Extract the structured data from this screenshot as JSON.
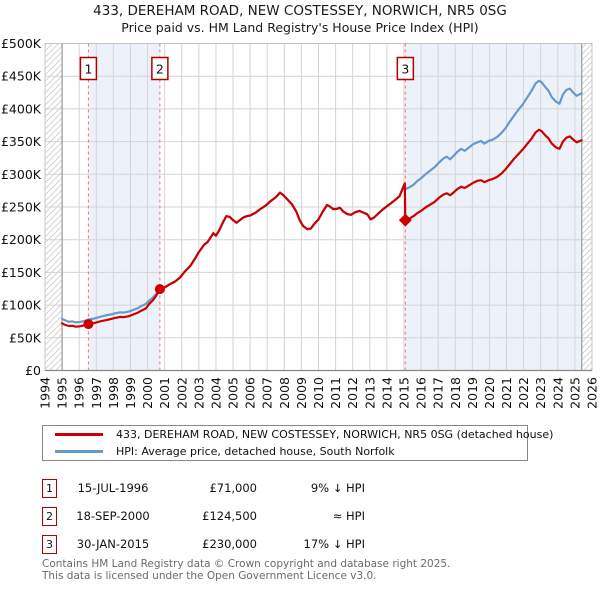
{
  "header": {
    "title": "433, DEREHAM ROAD, NEW COSTESSEY, NORWICH, NR5 0SG",
    "subtitle": "Price paid vs. HM Land Registry's House Price Index (HPI)"
  },
  "chart_data": {
    "type": "line",
    "title": "433, DEREHAM ROAD, NEW COSTESSEY, NORWICH, NR5 0SG",
    "subtitle": "Price paid vs. HM Land Registry's House Price Index (HPI)",
    "xlim": [
      1994,
      2026
    ],
    "ylim_pounds": [
      0,
      500000
    ],
    "grid": true,
    "legend_position": "below",
    "x_axis": {
      "ticks": [
        1994,
        1995,
        1996,
        1997,
        1998,
        1999,
        2000,
        2001,
        2002,
        2003,
        2004,
        2005,
        2006,
        2007,
        2008,
        2009,
        2010,
        2011,
        2012,
        2013,
        2014,
        2015,
        2016,
        2017,
        2018,
        2019,
        2020,
        2021,
        2022,
        2023,
        2024,
        2025,
        2026
      ]
    },
    "y_axis": {
      "tick_values_k": [
        0,
        50,
        100,
        150,
        200,
        250,
        300,
        350,
        400,
        450,
        500
      ],
      "tick_labels": [
        "£0",
        "£50K",
        "£100K",
        "£150K",
        "£200K",
        "£250K",
        "£300K",
        "£350K",
        "£400K",
        "£450K",
        "£500K"
      ]
    },
    "data_start_year": 1995.0,
    "data_end_year": 2025.4,
    "shaded_regions": [
      [
        1996.54,
        2000.72
      ],
      [
        2015.08,
        2025.4
      ]
    ],
    "hatched_regions": [
      [
        1994,
        1995.0
      ],
      [
        2025.4,
        2026
      ]
    ],
    "colors": {
      "property_line": "#cc0000",
      "hpi_line": "#6699cc",
      "sale_dashed_line": "#f08080",
      "shade_fill": "#edf2fa",
      "grid_line": "#d4d4d4",
      "plot_border": "#c4c4c4",
      "data_bound_line": "#999999",
      "hatch_stroke": "#cccccc",
      "badge_border": "#b00000",
      "axis_text": "#111111"
    },
    "series": [
      {
        "name": "433, DEREHAM ROAD, NEW COSTESSEY, NORWICH, NR5 0SG (detached house)",
        "color": "#cc0000",
        "points_year_poundsK": [
          [
            1995.0,
            72
          ],
          [
            1995.2,
            69.5
          ],
          [
            1995.4,
            68
          ],
          [
            1995.6,
            68.5
          ],
          [
            1995.8,
            67
          ],
          [
            1996.0,
            67.5
          ],
          [
            1996.2,
            68.5
          ],
          [
            1996.4,
            70
          ],
          [
            1996.54,
            71
          ],
          [
            1996.8,
            72
          ],
          [
            1997.0,
            73.5
          ],
          [
            1997.3,
            75.5
          ],
          [
            1997.6,
            77
          ],
          [
            1997.9,
            79
          ],
          [
            1998.1,
            80.5
          ],
          [
            1998.4,
            82
          ],
          [
            1998.6,
            81.5
          ],
          [
            1998.9,
            83
          ],
          [
            1999.1,
            85
          ],
          [
            1999.4,
            88
          ],
          [
            1999.6,
            91
          ],
          [
            1999.9,
            95
          ],
          [
            2000.1,
            102
          ],
          [
            2000.3,
            107
          ],
          [
            2000.5,
            114
          ],
          [
            2000.72,
            124.5
          ],
          [
            2001.0,
            127
          ],
          [
            2001.3,
            132
          ],
          [
            2001.6,
            136
          ],
          [
            2001.9,
            142
          ],
          [
            2002.2,
            152
          ],
          [
            2002.5,
            160
          ],
          [
            2002.8,
            172
          ],
          [
            2003.0,
            181
          ],
          [
            2003.3,
            192
          ],
          [
            2003.5,
            196
          ],
          [
            2003.7,
            204
          ],
          [
            2003.85,
            210
          ],
          [
            2004.0,
            206
          ],
          [
            2004.2,
            215
          ],
          [
            2004.4,
            226
          ],
          [
            2004.6,
            236
          ],
          [
            2004.8,
            235
          ],
          [
            2005.0,
            230
          ],
          [
            2005.2,
            226
          ],
          [
            2005.4,
            230
          ],
          [
            2005.6,
            234
          ],
          [
            2005.8,
            236
          ],
          [
            2006.0,
            237
          ],
          [
            2006.3,
            241
          ],
          [
            2006.6,
            247
          ],
          [
            2006.9,
            252
          ],
          [
            2007.2,
            259
          ],
          [
            2007.5,
            265
          ],
          [
            2007.75,
            272
          ],
          [
            2007.95,
            268
          ],
          [
            2008.2,
            261
          ],
          [
            2008.45,
            254
          ],
          [
            2008.7,
            243
          ],
          [
            2008.9,
            230
          ],
          [
            2009.1,
            221
          ],
          [
            2009.35,
            216
          ],
          [
            2009.55,
            217
          ],
          [
            2009.75,
            224
          ],
          [
            2010.0,
            231
          ],
          [
            2010.25,
            243
          ],
          [
            2010.5,
            253
          ],
          [
            2010.65,
            251
          ],
          [
            2010.85,
            247
          ],
          [
            2011.05,
            247
          ],
          [
            2011.25,
            249
          ],
          [
            2011.45,
            243
          ],
          [
            2011.7,
            239
          ],
          [
            2011.9,
            238
          ],
          [
            2012.15,
            242
          ],
          [
            2012.4,
            244
          ],
          [
            2012.65,
            241
          ],
          [
            2012.85,
            239
          ],
          [
            2013.05,
            231
          ],
          [
            2013.25,
            234
          ],
          [
            2013.5,
            240
          ],
          [
            2013.75,
            246
          ],
          [
            2014.0,
            251
          ],
          [
            2014.25,
            256
          ],
          [
            2014.5,
            261
          ],
          [
            2014.75,
            267
          ],
          [
            2014.95,
            280
          ],
          [
            2015.05,
            286
          ],
          [
            2015.08,
            230
          ],
          [
            2015.3,
            232
          ],
          [
            2015.55,
            236
          ],
          [
            2015.8,
            241
          ],
          [
            2016.05,
            245
          ],
          [
            2016.3,
            250
          ],
          [
            2016.55,
            254
          ],
          [
            2016.8,
            258
          ],
          [
            2017.05,
            264
          ],
          [
            2017.3,
            269
          ],
          [
            2017.5,
            271
          ],
          [
            2017.7,
            268
          ],
          [
            2017.9,
            272
          ],
          [
            2018.1,
            277
          ],
          [
            2018.35,
            281
          ],
          [
            2018.55,
            279
          ],
          [
            2018.8,
            283
          ],
          [
            2019.05,
            287
          ],
          [
            2019.3,
            290
          ],
          [
            2019.5,
            291
          ],
          [
            2019.7,
            288
          ],
          [
            2019.95,
            291
          ],
          [
            2020.2,
            293
          ],
          [
            2020.45,
            296
          ],
          [
            2020.7,
            301
          ],
          [
            2020.95,
            308
          ],
          [
            2021.2,
            316
          ],
          [
            2021.45,
            324
          ],
          [
            2021.7,
            331
          ],
          [
            2021.95,
            338
          ],
          [
            2022.2,
            346
          ],
          [
            2022.45,
            354
          ],
          [
            2022.7,
            364
          ],
          [
            2022.9,
            368
          ],
          [
            2023.05,
            366
          ],
          [
            2023.25,
            360
          ],
          [
            2023.45,
            355
          ],
          [
            2023.65,
            347
          ],
          [
            2023.9,
            341
          ],
          [
            2024.1,
            339
          ],
          [
            2024.3,
            350
          ],
          [
            2024.5,
            356
          ],
          [
            2024.7,
            358
          ],
          [
            2024.9,
            353
          ],
          [
            2025.1,
            349
          ],
          [
            2025.4,
            352
          ]
        ]
      },
      {
        "name": "HPI: Average price, detached house, South Norfolk",
        "color": "#6699cc",
        "points_year_poundsK": [
          [
            1995.0,
            79
          ],
          [
            1995.2,
            76.5
          ],
          [
            1995.4,
            74.5
          ],
          [
            1995.6,
            75
          ],
          [
            1995.8,
            73.5
          ],
          [
            1996.0,
            74
          ],
          [
            1996.2,
            75
          ],
          [
            1996.4,
            76.5
          ],
          [
            1996.54,
            78
          ],
          [
            1996.8,
            79
          ],
          [
            1997.0,
            80.5
          ],
          [
            1997.3,
            82.5
          ],
          [
            1997.6,
            84.5
          ],
          [
            1997.9,
            86
          ],
          [
            1998.1,
            87.5
          ],
          [
            1998.4,
            89
          ],
          [
            1998.6,
            88.5
          ],
          [
            1998.9,
            90
          ],
          [
            1999.1,
            92
          ],
          [
            1999.4,
            95
          ],
          [
            1999.6,
            98
          ],
          [
            1999.9,
            102
          ],
          [
            2000.1,
            107
          ],
          [
            2000.3,
            111
          ],
          [
            2000.5,
            117
          ],
          [
            2000.72,
            124.5
          ],
          [
            2001.0,
            127
          ],
          [
            2001.3,
            132
          ],
          [
            2001.6,
            136
          ],
          [
            2001.9,
            142
          ],
          [
            2002.2,
            152
          ],
          [
            2002.5,
            160
          ],
          [
            2002.8,
            172
          ],
          [
            2003.0,
            181
          ],
          [
            2003.3,
            192
          ],
          [
            2003.5,
            196
          ],
          [
            2003.7,
            204
          ],
          [
            2003.85,
            210
          ],
          [
            2004.0,
            206
          ],
          [
            2004.2,
            215
          ],
          [
            2004.4,
            226
          ],
          [
            2004.6,
            236
          ],
          [
            2004.8,
            235
          ],
          [
            2005.0,
            230
          ],
          [
            2005.2,
            226
          ],
          [
            2005.4,
            230
          ],
          [
            2005.6,
            234
          ],
          [
            2005.8,
            236
          ],
          [
            2006.0,
            237
          ],
          [
            2006.3,
            241
          ],
          [
            2006.6,
            247
          ],
          [
            2006.9,
            252
          ],
          [
            2007.2,
            259
          ],
          [
            2007.5,
            265
          ],
          [
            2007.75,
            272
          ],
          [
            2007.95,
            268
          ],
          [
            2008.2,
            261
          ],
          [
            2008.45,
            254
          ],
          [
            2008.7,
            243
          ],
          [
            2008.9,
            230
          ],
          [
            2009.1,
            221
          ],
          [
            2009.35,
            216
          ],
          [
            2009.55,
            217
          ],
          [
            2009.75,
            224
          ],
          [
            2010.0,
            231
          ],
          [
            2010.25,
            243
          ],
          [
            2010.5,
            253
          ],
          [
            2010.65,
            251
          ],
          [
            2010.85,
            247
          ],
          [
            2011.05,
            247
          ],
          [
            2011.25,
            249
          ],
          [
            2011.45,
            243
          ],
          [
            2011.7,
            239
          ],
          [
            2011.9,
            238
          ],
          [
            2012.15,
            242
          ],
          [
            2012.4,
            244
          ],
          [
            2012.65,
            241
          ],
          [
            2012.85,
            239
          ],
          [
            2013.05,
            231
          ],
          [
            2013.25,
            234
          ],
          [
            2013.5,
            240
          ],
          [
            2013.75,
            246
          ],
          [
            2014.0,
            251
          ],
          [
            2014.25,
            256
          ],
          [
            2014.5,
            261
          ],
          [
            2014.75,
            267
          ],
          [
            2014.95,
            280
          ],
          [
            2015.05,
            286
          ],
          [
            2015.08,
            277
          ],
          [
            2015.3,
            280
          ],
          [
            2015.55,
            284
          ],
          [
            2015.8,
            290
          ],
          [
            2016.05,
            295
          ],
          [
            2016.3,
            301
          ],
          [
            2016.55,
            306
          ],
          [
            2016.8,
            311
          ],
          [
            2017.05,
            318
          ],
          [
            2017.3,
            324
          ],
          [
            2017.5,
            327
          ],
          [
            2017.7,
            323
          ],
          [
            2017.9,
            328
          ],
          [
            2018.1,
            334
          ],
          [
            2018.35,
            339
          ],
          [
            2018.55,
            336
          ],
          [
            2018.8,
            341
          ],
          [
            2019.05,
            346
          ],
          [
            2019.3,
            349
          ],
          [
            2019.5,
            351
          ],
          [
            2019.7,
            347
          ],
          [
            2019.95,
            351
          ],
          [
            2020.2,
            353
          ],
          [
            2020.45,
            357
          ],
          [
            2020.7,
            363
          ],
          [
            2020.95,
            371
          ],
          [
            2021.2,
            381
          ],
          [
            2021.45,
            390
          ],
          [
            2021.7,
            399
          ],
          [
            2021.95,
            407
          ],
          [
            2022.2,
            417
          ],
          [
            2022.45,
            427
          ],
          [
            2022.7,
            439
          ],
          [
            2022.9,
            443
          ],
          [
            2023.05,
            441
          ],
          [
            2023.25,
            434
          ],
          [
            2023.45,
            428
          ],
          [
            2023.65,
            418
          ],
          [
            2023.9,
            411
          ],
          [
            2024.1,
            408
          ],
          [
            2024.3,
            422
          ],
          [
            2024.5,
            429
          ],
          [
            2024.7,
            431
          ],
          [
            2024.9,
            425
          ],
          [
            2025.1,
            420
          ],
          [
            2025.4,
            424
          ]
        ]
      }
    ],
    "sale_markers": [
      {
        "label": "1",
        "year": 1996.54,
        "value_k": 71,
        "shape": "circle"
      },
      {
        "label": "2",
        "year": 2000.72,
        "value_k": 124.5,
        "shape": "circle"
      },
      {
        "label": "3",
        "year": 2015.08,
        "value_k": 230,
        "shape": "diamond"
      }
    ]
  },
  "legend": {
    "property_label": "433, DEREHAM ROAD, NEW COSTESSEY, NORWICH, NR5 0SG (detached house)",
    "hpi_label": "HPI: Average price, detached house, South Norfolk"
  },
  "transactions": [
    {
      "num": "1",
      "date": "15-JUL-1996",
      "price": "£71,000",
      "hpi_note": "9% ↓ HPI"
    },
    {
      "num": "2",
      "date": "18-SEP-2000",
      "price": "£124,500",
      "hpi_note": "≈ HPI"
    },
    {
      "num": "3",
      "date": "30-JAN-2015",
      "price": "£230,000",
      "hpi_note": "17% ↓ HPI"
    }
  ],
  "footer": {
    "line1": "Contains HM Land Registry data © Crown copyright and database right 2025.",
    "line2": "This data is licensed under the Open Government Licence v3.0."
  }
}
